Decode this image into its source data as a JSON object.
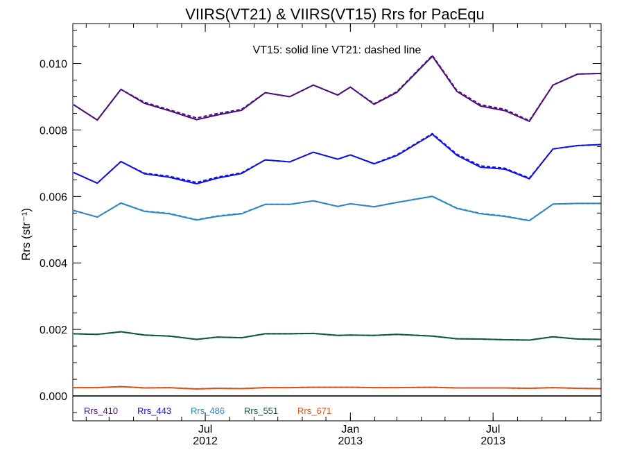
{
  "chart_data": {
    "type": "line",
    "title": "VIIRS(VT21) & VIIRS(VT15)  Rrs for PacEqu",
    "ylabel": "Rrs (str⁻¹)",
    "annotation": "VT15: solid line   VT21: dashed line",
    "ylim": [
      -0.00075,
      0.0112
    ],
    "yticks": [
      {
        "value": 0.0,
        "label": "0.000"
      },
      {
        "value": 0.002,
        "label": "0.002"
      },
      {
        "value": 0.004,
        "label": "0.004"
      },
      {
        "value": 0.006,
        "label": "0.006"
      },
      {
        "value": 0.008,
        "label": "0.008"
      },
      {
        "value": 0.01,
        "label": "0.010"
      }
    ],
    "xlim": [
      "2012-01-15",
      "2013-11-15"
    ],
    "xticks": [
      {
        "date": "2012-07-01",
        "month": "Jul",
        "year": "2012"
      },
      {
        "date": "2013-01-01",
        "month": "Jan",
        "year": "2013"
      },
      {
        "date": "2013-07-01",
        "month": "Jul",
        "year": "2013"
      }
    ],
    "x": [
      "2012-01-16",
      "2012-02-15",
      "2012-03-16",
      "2012-04-15",
      "2012-05-16",
      "2012-06-20",
      "2012-07-16",
      "2012-08-16",
      "2012-09-15",
      "2012-10-16",
      "2012-11-15",
      "2012-12-16",
      "2013-01-01",
      "2013-01-31",
      "2013-03-01",
      "2013-04-15",
      "2013-05-16",
      "2013-06-15",
      "2013-07-16",
      "2013-08-16",
      "2013-09-15",
      "2013-10-16",
      "2013-11-15"
    ],
    "zero_line": true,
    "series": [
      {
        "name": "Rrs_410",
        "color": "#4b0f7e",
        "vt15": [
          0.00876,
          0.0083,
          0.00922,
          0.0088,
          0.00858,
          0.00831,
          0.00845,
          0.00859,
          0.00912,
          0.009,
          0.00935,
          0.00905,
          0.00929,
          0.00877,
          0.00913,
          0.01022,
          0.00916,
          0.00872,
          0.00858,
          0.00826,
          0.00935,
          0.00968,
          0.0097
        ],
        "vt21": [
          0.00876,
          0.0083,
          0.00922,
          0.00883,
          0.00861,
          0.00836,
          0.00849,
          0.00862,
          0.00912,
          0.009,
          0.00935,
          0.00905,
          0.00929,
          0.00879,
          0.00915,
          0.01024,
          0.00919,
          0.00876,
          0.00862,
          0.00828,
          0.00935,
          0.00968,
          0.0097
        ]
      },
      {
        "name": "Rrs_443",
        "color": "#1010e8",
        "vt15": [
          0.00672,
          0.0064,
          0.00705,
          0.00668,
          0.00658,
          0.00638,
          0.00655,
          0.00669,
          0.0071,
          0.00704,
          0.00733,
          0.00712,
          0.00725,
          0.00698,
          0.00723,
          0.00787,
          0.00724,
          0.00688,
          0.00682,
          0.00653,
          0.00743,
          0.00753,
          0.00756
        ],
        "vt21": [
          0.00672,
          0.0064,
          0.00705,
          0.0067,
          0.00661,
          0.00642,
          0.00658,
          0.00671,
          0.0071,
          0.00704,
          0.00733,
          0.00712,
          0.00725,
          0.00699,
          0.00725,
          0.00789,
          0.00727,
          0.00692,
          0.00685,
          0.00655,
          0.00743,
          0.00753,
          0.00756
        ]
      },
      {
        "name": "Rrs_486",
        "color": "#2f86c4",
        "vt15": [
          0.00558,
          0.00538,
          0.0058,
          0.00555,
          0.00548,
          0.00529,
          0.0054,
          0.00548,
          0.00576,
          0.00576,
          0.00587,
          0.0057,
          0.00578,
          0.00569,
          0.00582,
          0.006,
          0.00564,
          0.00548,
          0.0054,
          0.00527,
          0.00577,
          0.00579,
          0.00579
        ],
        "vt21": [
          0.00558,
          0.00538,
          0.0058,
          0.00556,
          0.00549,
          0.0053,
          0.00541,
          0.00549,
          0.00576,
          0.00576,
          0.00587,
          0.0057,
          0.00578,
          0.00569,
          0.00582,
          0.00601,
          0.00565,
          0.00549,
          0.00541,
          0.00528,
          0.00577,
          0.00579,
          0.00579
        ]
      },
      {
        "name": "Rrs_551",
        "color": "#0d5a33",
        "vt15": [
          0.00187,
          0.00185,
          0.00193,
          0.00183,
          0.0018,
          0.0017,
          0.00177,
          0.00175,
          0.00187,
          0.00187,
          0.00188,
          0.00182,
          0.00183,
          0.00182,
          0.00185,
          0.0018,
          0.00172,
          0.00171,
          0.00169,
          0.00168,
          0.00178,
          0.00171,
          0.0017
        ],
        "vt21": [
          0.00187,
          0.00185,
          0.00193,
          0.00183,
          0.0018,
          0.0017,
          0.00177,
          0.00175,
          0.00187,
          0.00187,
          0.00188,
          0.00182,
          0.00183,
          0.00182,
          0.00185,
          0.0018,
          0.00172,
          0.00171,
          0.00169,
          0.00168,
          0.00178,
          0.00171,
          0.0017
        ]
      },
      {
        "name": "Rrs_671",
        "color": "#d9531e",
        "vt15": [
          0.00025,
          0.00025,
          0.00028,
          0.00024,
          0.00025,
          0.00021,
          0.00023,
          0.00022,
          0.00025,
          0.00025,
          0.00026,
          0.00026,
          0.00026,
          0.00025,
          0.00025,
          0.00026,
          0.00024,
          0.00024,
          0.00024,
          0.00023,
          0.00025,
          0.00023,
          0.00022
        ],
        "vt21": [
          0.00025,
          0.00025,
          0.00028,
          0.00024,
          0.00025,
          0.00021,
          0.00023,
          0.00022,
          0.00025,
          0.00025,
          0.00026,
          0.00026,
          0.00026,
          0.00025,
          0.00025,
          0.00026,
          0.00024,
          0.00024,
          0.00024,
          0.00023,
          0.00025,
          0.00023,
          0.00022
        ]
      }
    ]
  }
}
